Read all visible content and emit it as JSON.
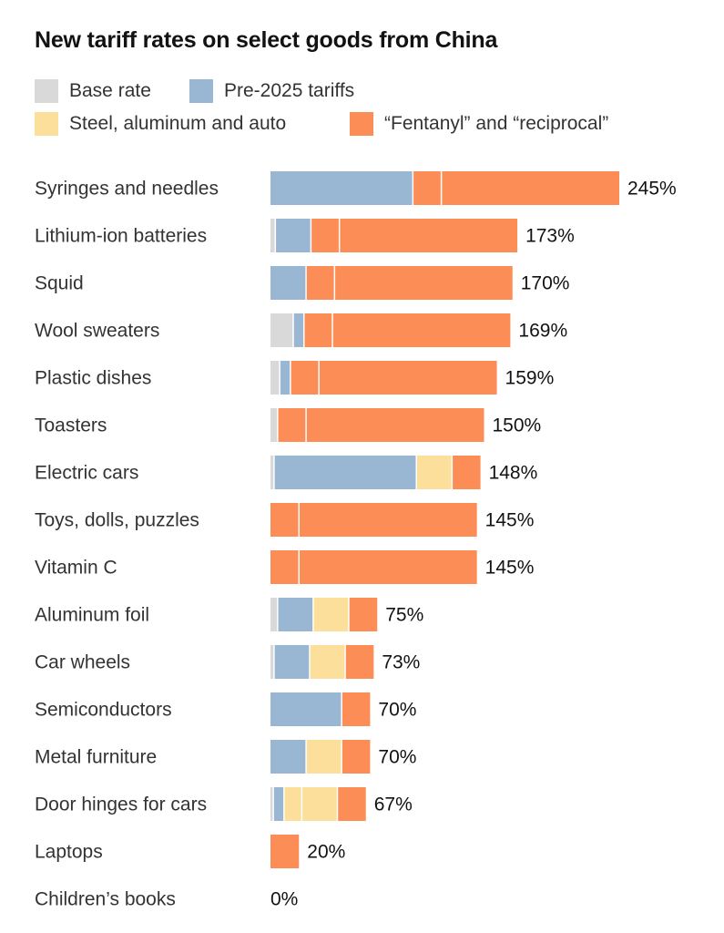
{
  "chart_data": {
    "type": "bar",
    "orientation": "horizontal",
    "stacked": true,
    "title": "New tariff rates on select goods from China",
    "legend": [
      {
        "name": "Base rate",
        "color": "#d9d9d9"
      },
      {
        "name": "Pre-2025 tariffs",
        "color": "#99b6d3"
      },
      {
        "name": "Steel, aluminum and auto",
        "color": "#fbdf9a"
      },
      {
        "name": "“Fentanyl” and “reciprocal”",
        "color": "#fd8d56"
      }
    ],
    "rows": [
      {
        "label": "Syringes and needles",
        "total": "245%",
        "segments": [
          {
            "type": 1,
            "value": 100
          },
          {
            "type": 3,
            "value": 20
          },
          {
            "type": 3,
            "value": 125
          }
        ]
      },
      {
        "label": "Lithium-ion batteries",
        "total": "173%",
        "segments": [
          {
            "type": 0,
            "value": 3.4
          },
          {
            "type": 1,
            "value": 25
          },
          {
            "type": 3,
            "value": 20
          },
          {
            "type": 3,
            "value": 125
          }
        ]
      },
      {
        "label": "Squid",
        "total": "170%",
        "segments": [
          {
            "type": 1,
            "value": 25
          },
          {
            "type": 3,
            "value": 20
          },
          {
            "type": 3,
            "value": 125
          }
        ]
      },
      {
        "label": "Wool sweaters",
        "total": "169%",
        "segments": [
          {
            "type": 0,
            "value": 16
          },
          {
            "type": 1,
            "value": 7.5
          },
          {
            "type": 3,
            "value": 20
          },
          {
            "type": 3,
            "value": 125
          }
        ]
      },
      {
        "label": "Plastic dishes",
        "total": "159%",
        "segments": [
          {
            "type": 0,
            "value": 6.5
          },
          {
            "type": 1,
            "value": 7.5
          },
          {
            "type": 3,
            "value": 20
          },
          {
            "type": 3,
            "value": 125
          }
        ]
      },
      {
        "label": "Toasters",
        "total": "150%",
        "segments": [
          {
            "type": 0,
            "value": 5
          },
          {
            "type": 3,
            "value": 20
          },
          {
            "type": 3,
            "value": 125
          }
        ]
      },
      {
        "label": "Electric cars",
        "total": "148%",
        "segments": [
          {
            "type": 0,
            "value": 2.5
          },
          {
            "type": 1,
            "value": 100
          },
          {
            "type": 2,
            "value": 25
          },
          {
            "type": 3,
            "value": 20
          }
        ]
      },
      {
        "label": "Toys, dolls, puzzles",
        "total": "145%",
        "segments": [
          {
            "type": 3,
            "value": 20
          },
          {
            "type": 3,
            "value": 125
          }
        ]
      },
      {
        "label": "Vitamin C",
        "total": "145%",
        "segments": [
          {
            "type": 3,
            "value": 20
          },
          {
            "type": 3,
            "value": 125
          }
        ]
      },
      {
        "label": "Aluminum foil",
        "total": "75%",
        "segments": [
          {
            "type": 0,
            "value": 5
          },
          {
            "type": 1,
            "value": 25
          },
          {
            "type": 2,
            "value": 25
          },
          {
            "type": 3,
            "value": 20
          }
        ]
      },
      {
        "label": "Car wheels",
        "total": "73%",
        "segments": [
          {
            "type": 0,
            "value": 2.5
          },
          {
            "type": 1,
            "value": 25
          },
          {
            "type": 2,
            "value": 25
          },
          {
            "type": 3,
            "value": 20
          }
        ]
      },
      {
        "label": "Semiconductors",
        "total": "70%",
        "segments": [
          {
            "type": 1,
            "value": 50
          },
          {
            "type": 3,
            "value": 20
          }
        ]
      },
      {
        "label": "Metal furniture",
        "total": "70%",
        "segments": [
          {
            "type": 1,
            "value": 25
          },
          {
            "type": 2,
            "value": 25
          },
          {
            "type": 3,
            "value": 20
          }
        ]
      },
      {
        "label": "Door hinges for cars",
        "total": "67%",
        "segments": [
          {
            "type": 0,
            "value": 2
          },
          {
            "type": 1,
            "value": 7.5
          },
          {
            "type": 2,
            "value": 12.5
          },
          {
            "type": 2,
            "value": 25
          },
          {
            "type": 3,
            "value": 20
          }
        ]
      },
      {
        "label": "Laptops",
        "total": "20%",
        "segments": [
          {
            "type": 3,
            "value": 20
          }
        ]
      },
      {
        "label": "Children’s books",
        "total": "0%",
        "segments": []
      }
    ],
    "xlim": [
      0,
      245
    ],
    "grid": false,
    "legend_position": "top-left"
  }
}
